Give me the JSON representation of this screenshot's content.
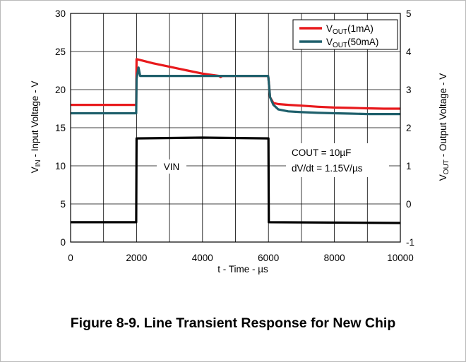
{
  "caption": "Figure 8-9. Line Transient Response for New Chip",
  "chart_data": {
    "type": "line",
    "title": "",
    "xlabel": "t - Time - µs",
    "ylabel_left": {
      "main": "V",
      "sub": "IN",
      "rest": " - Input Voltage - V"
    },
    "ylabel_right": {
      "main": "V",
      "sub": "OUT",
      "rest": " - Output Voltage - V"
    },
    "xlim": [
      0,
      10000
    ],
    "ylim_left": [
      0,
      30
    ],
    "ylim_right": [
      -1,
      5
    ],
    "x_ticks": [
      "0",
      "2000",
      "4000",
      "6000",
      "8000",
      "10000"
    ],
    "y_left_ticks": [
      "0",
      "5",
      "10",
      "15",
      "20",
      "25",
      "30"
    ],
    "y_right_ticks": [
      "-1",
      "0",
      "1",
      "2",
      "3",
      "4",
      "5"
    ],
    "grid": true,
    "legend_position": "top-right",
    "series": [
      {
        "name_main": "V",
        "name_sub": "OUT",
        "name_rest": "(1mA)",
        "axis": "right",
        "color": "#e8191c",
        "x": [
          0,
          1990,
          2000,
          2100,
          2500,
          3000,
          3500,
          4000,
          4500,
          4550,
          4600,
          5000,
          5500,
          5990,
          6000,
          6050,
          6150,
          6300,
          6600,
          7000,
          7500,
          8000,
          8500,
          9000,
          9500,
          10000
        ],
        "y": [
          2.6,
          2.6,
          3.8,
          3.78,
          3.69,
          3.6,
          3.51,
          3.42,
          3.36,
          3.33,
          3.36,
          3.36,
          3.36,
          3.36,
          3.3,
          2.8,
          2.65,
          2.62,
          2.6,
          2.58,
          2.55,
          2.53,
          2.52,
          2.51,
          2.5,
          2.5
        ]
      },
      {
        "name_main": "V",
        "name_sub": "OUT",
        "name_rest": "(50mA)",
        "axis": "right",
        "color": "#1e5f6b",
        "x": [
          0,
          1990,
          2000,
          2060,
          2110,
          2200,
          3000,
          4000,
          5000,
          5990,
          6000,
          6050,
          6150,
          6300,
          6600,
          7000,
          7500,
          8000,
          8500,
          9000,
          9500,
          10000
        ],
        "y": [
          2.38,
          2.38,
          3.28,
          3.58,
          3.36,
          3.36,
          3.36,
          3.36,
          3.36,
          3.36,
          3.3,
          2.8,
          2.6,
          2.48,
          2.43,
          2.41,
          2.39,
          2.38,
          2.37,
          2.36,
          2.36,
          2.36
        ]
      },
      {
        "name": "VIN",
        "axis": "left",
        "color": "#000000",
        "x": [
          0,
          1990,
          2000,
          4000,
          6000,
          6010,
          10000
        ],
        "y": [
          2.6,
          2.6,
          13.6,
          13.7,
          13.6,
          2.6,
          2.5
        ]
      }
    ],
    "annotations": {
      "vin_label": "VIN",
      "cout_text": "COUT = 10",
      "cout_unit": "µF",
      "slew_text": "dV/dt = 1.15V/",
      "slew_unit": "µs"
    }
  }
}
